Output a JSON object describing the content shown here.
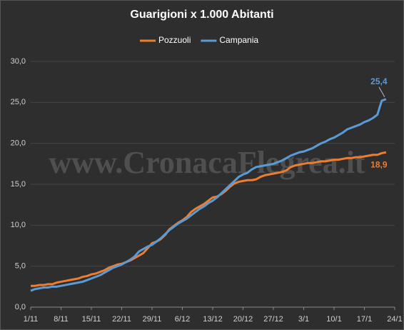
{
  "chart_data": {
    "type": "line",
    "title": "Guarigioni  x 1.000 Abitanti",
    "watermark": "www.CronacaFlegrea.it",
    "categories": [
      "1/11",
      null,
      null,
      null,
      null,
      null,
      null,
      "8/11",
      null,
      null,
      null,
      null,
      null,
      null,
      "15/11",
      null,
      null,
      null,
      null,
      null,
      null,
      "22/11",
      null,
      null,
      null,
      null,
      null,
      null,
      "29/11",
      null,
      null,
      null,
      null,
      null,
      null,
      "6/12",
      null,
      null,
      null,
      null,
      null,
      null,
      "13/12",
      null,
      null,
      null,
      null,
      null,
      null,
      "20/12",
      null,
      null,
      null,
      null,
      null,
      null,
      "27/12",
      null,
      null,
      null,
      null,
      null,
      null,
      "3/1",
      null,
      null,
      null,
      null,
      null,
      null,
      "10/1",
      null,
      null,
      null,
      null,
      null,
      null,
      "17/1",
      null,
      null,
      null,
      null,
      null,
      null,
      "24/1"
    ],
    "series": [
      {
        "name": "Pozzuoli",
        "color": "#ed7d31",
        "values": [
          2.6,
          2.6,
          2.7,
          2.7,
          2.8,
          2.8,
          3.0,
          3.1,
          3.2,
          3.3,
          3.4,
          3.5,
          3.7,
          3.8,
          4.0,
          4.1,
          4.3,
          4.5,
          4.8,
          5.0,
          5.2,
          5.3,
          5.5,
          5.7,
          6.0,
          6.3,
          6.6,
          7.2,
          7.8,
          8.0,
          8.3,
          8.8,
          9.5,
          9.9,
          10.3,
          10.6,
          11.0,
          11.6,
          12.0,
          12.3,
          12.6,
          13.0,
          13.4,
          13.5,
          13.8,
          14.2,
          14.7,
          15.1,
          15.3,
          15.4,
          15.5,
          15.5,
          15.6,
          15.9,
          16.1,
          16.2,
          16.3,
          16.4,
          16.5,
          16.7,
          17.1,
          17.3,
          17.4,
          17.5,
          17.6,
          17.6,
          17.7,
          17.8,
          17.8,
          17.9,
          18.0,
          18.0,
          18.1,
          18.2,
          18.2,
          18.3,
          18.3,
          18.4,
          18.5,
          18.6,
          18.6,
          18.8,
          18.9,
          null,
          null
        ],
        "value_labels": [
          null,
          null,
          null,
          null,
          null,
          null,
          null,
          null,
          null,
          null,
          null,
          null,
          null,
          null,
          null,
          null,
          null,
          null,
          null,
          null,
          null,
          null,
          null,
          null,
          null,
          null,
          null,
          null,
          null,
          null,
          null,
          null,
          null,
          null,
          null,
          null,
          null,
          null,
          null,
          null,
          null,
          null,
          null,
          null,
          null,
          null,
          null,
          null,
          null,
          null,
          null,
          null,
          null,
          null,
          null,
          null,
          null,
          null,
          null,
          null,
          null,
          null,
          null,
          null,
          null,
          null,
          null,
          null,
          null,
          null,
          null,
          null,
          null,
          null,
          null,
          null,
          null,
          null,
          null,
          null,
          null,
          null,
          "18,9",
          null,
          null
        ]
      },
      {
        "name": "Campania",
        "color": "#5b9bd5",
        "values": [
          2.0,
          2.2,
          2.3,
          2.4,
          2.4,
          2.5,
          2.5,
          2.6,
          2.7,
          2.8,
          2.9,
          3.0,
          3.1,
          3.3,
          3.5,
          3.7,
          3.9,
          4.2,
          4.5,
          4.8,
          5.0,
          5.2,
          5.5,
          5.8,
          6.2,
          6.8,
          7.1,
          7.4,
          7.6,
          8.0,
          8.4,
          8.9,
          9.4,
          9.8,
          10.2,
          10.5,
          10.8,
          11.2,
          11.6,
          12.0,
          12.3,
          12.7,
          13.0,
          13.4,
          13.9,
          14.4,
          14.9,
          15.4,
          15.9,
          16.2,
          16.4,
          16.8,
          17.1,
          17.2,
          17.3,
          17.4,
          17.5,
          17.7,
          17.9,
          18.2,
          18.5,
          18.7,
          18.9,
          19.0,
          19.2,
          19.4,
          19.7,
          20.0,
          20.2,
          20.5,
          20.7,
          21.0,
          21.3,
          21.7,
          21.9,
          22.1,
          22.3,
          22.6,
          22.8,
          23.1,
          23.5,
          25.2,
          25.4,
          null,
          null
        ],
        "value_labels": [
          null,
          null,
          null,
          null,
          null,
          null,
          null,
          null,
          null,
          null,
          null,
          null,
          null,
          null,
          null,
          null,
          null,
          null,
          null,
          null,
          null,
          null,
          null,
          null,
          null,
          null,
          null,
          null,
          null,
          null,
          null,
          null,
          null,
          null,
          null,
          null,
          null,
          null,
          null,
          null,
          null,
          null,
          null,
          null,
          null,
          null,
          null,
          null,
          null,
          null,
          null,
          null,
          null,
          null,
          null,
          null,
          null,
          null,
          null,
          null,
          null,
          null,
          null,
          null,
          null,
          null,
          null,
          null,
          null,
          null,
          null,
          null,
          null,
          null,
          null,
          null,
          null,
          null,
          null,
          null,
          null,
          null,
          "25,4",
          null,
          null
        ]
      }
    ],
    "ylim": [
      0,
      30
    ],
    "yticks": [
      {
        "value": 0,
        "label": "0,0"
      },
      {
        "value": 5,
        "label": "5,0"
      },
      {
        "value": 10,
        "label": "10,0"
      },
      {
        "value": 15,
        "label": "15,0"
      },
      {
        "value": 20,
        "label": "20,0"
      },
      {
        "value": 25,
        "label": "25,0"
      },
      {
        "value": 30,
        "label": "30,0"
      }
    ],
    "grid": true,
    "legend": "top"
  }
}
